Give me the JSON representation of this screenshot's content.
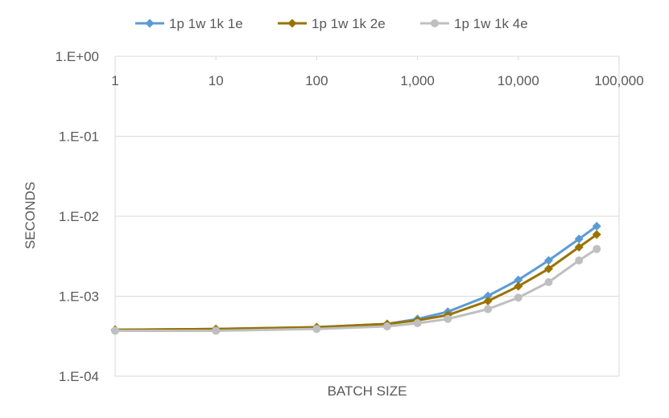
{
  "chart_data": {
    "type": "line",
    "title": "",
    "xlabel": "BATCH SIZE",
    "ylabel": "SECONDS",
    "x_scale": "log",
    "y_scale": "log",
    "xlim": [
      1,
      100000
    ],
    "ylim": [
      0.0001,
      1
    ],
    "x_ticks": [
      1,
      10,
      100,
      1000,
      10000,
      100000
    ],
    "x_tick_labels": [
      "1",
      "10",
      "100",
      "1,000",
      "10,000",
      "100,000"
    ],
    "y_ticks": [
      1,
      0.1,
      0.01,
      0.001,
      0.0001
    ],
    "y_tick_labels": [
      "1.E+00",
      "1.E-01",
      "1.E-02",
      "1.E-03",
      "1.E-04"
    ],
    "grid": "horizontal",
    "legend_position": "top",
    "x": [
      1,
      10,
      100,
      500,
      1000,
      2000,
      5000,
      10000,
      20000,
      40000,
      60000
    ],
    "series": [
      {
        "name": "1p 1w 1k 1e",
        "color": "#5B9BD5",
        "marker": "diamond",
        "values": [
          0.00038,
          0.00039,
          0.00041,
          0.00045,
          0.00052,
          0.00064,
          0.00101,
          0.0016,
          0.0028,
          0.0052,
          0.0075
        ]
      },
      {
        "name": "1p 1w 1k 2e",
        "color": "#997300",
        "marker": "diamond",
        "values": [
          0.00038,
          0.00039,
          0.00041,
          0.00045,
          0.0005,
          0.00058,
          0.00087,
          0.00133,
          0.0022,
          0.0041,
          0.0059
        ]
      },
      {
        "name": "1p 1w 1k 4e",
        "color": "#BFBFBF",
        "marker": "circle",
        "values": [
          0.00037,
          0.00037,
          0.00039,
          0.00042,
          0.00046,
          0.00052,
          0.00069,
          0.00096,
          0.0015,
          0.0028,
          0.0039
        ]
      }
    ]
  }
}
